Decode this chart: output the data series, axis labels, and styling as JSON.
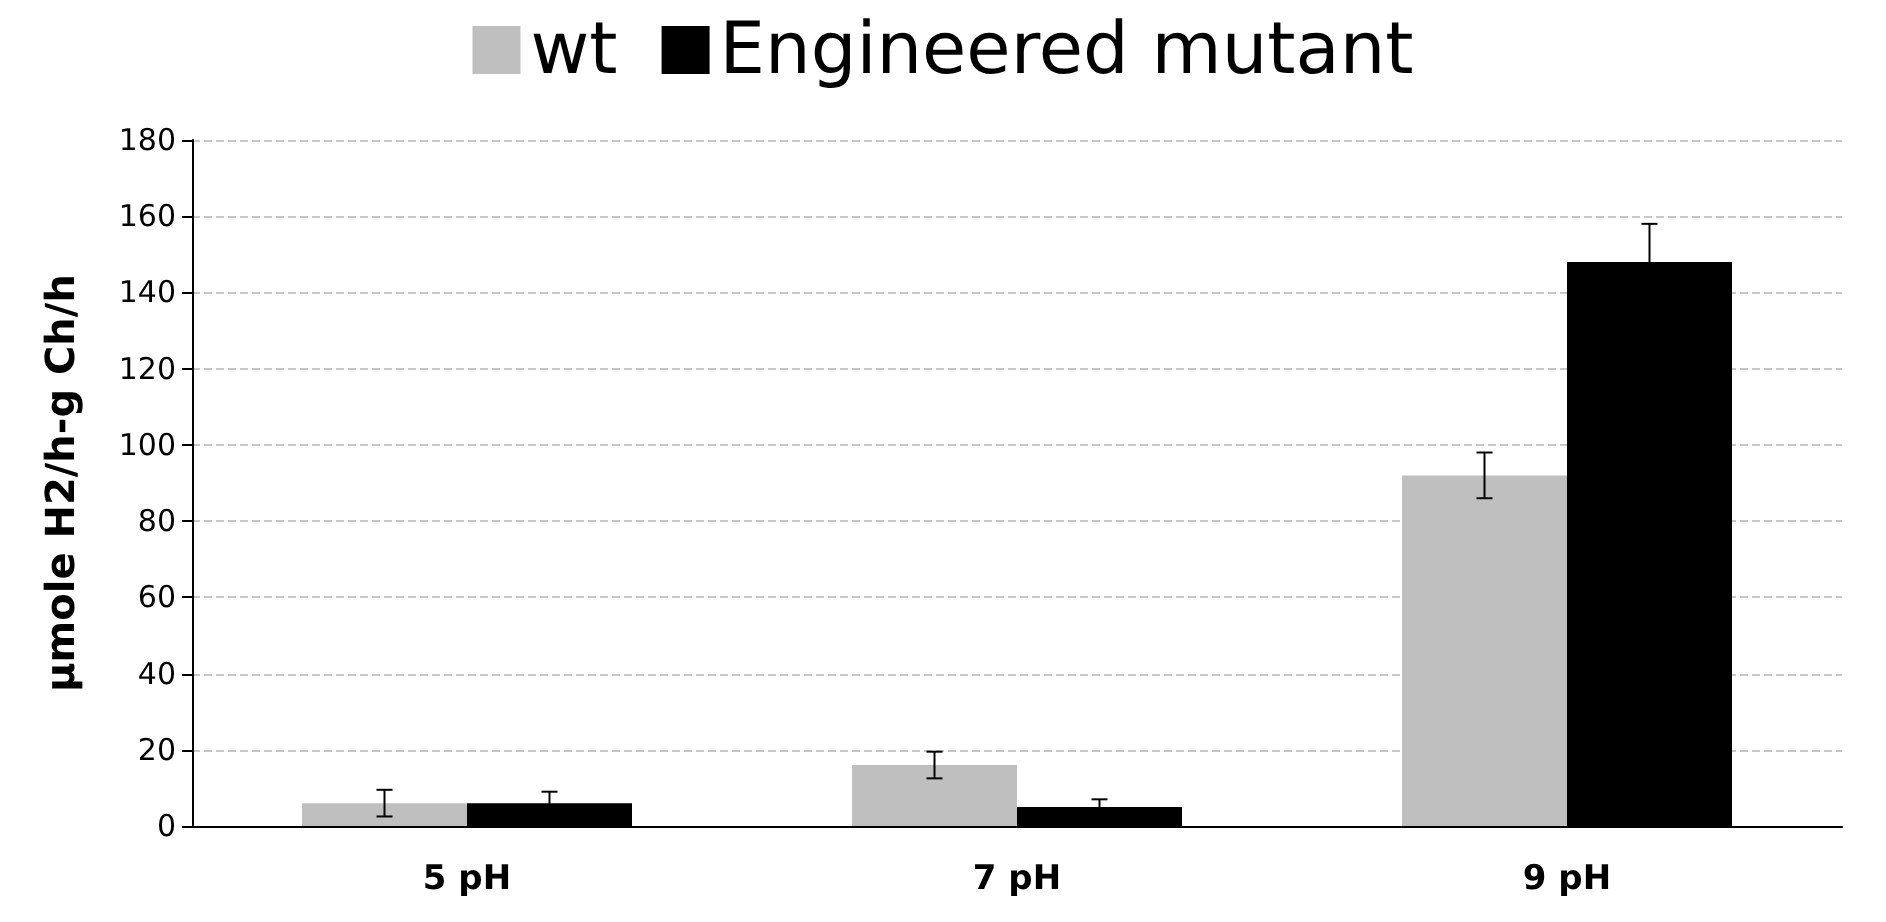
{
  "chart_data": {
    "type": "bar",
    "ylabel": "µmole H2/h-g Ch/h",
    "categories": [
      "5 pH",
      "7 pH",
      "9 pH"
    ],
    "series": [
      {
        "name": "wt",
        "color": "#bfbfbf",
        "values": [
          6,
          16,
          92
        ],
        "errors": [
          3.5,
          3.5,
          6
        ]
      },
      {
        "name": "Engineered mutant",
        "color": "#000000",
        "values": [
          6,
          5,
          148
        ],
        "errors": [
          3,
          2,
          10
        ]
      }
    ],
    "ylim": [
      0,
      180
    ],
    "yticks": [
      0,
      20,
      40,
      60,
      80,
      100,
      120,
      140,
      160,
      180
    ],
    "grid": "y",
    "legend": "top"
  }
}
